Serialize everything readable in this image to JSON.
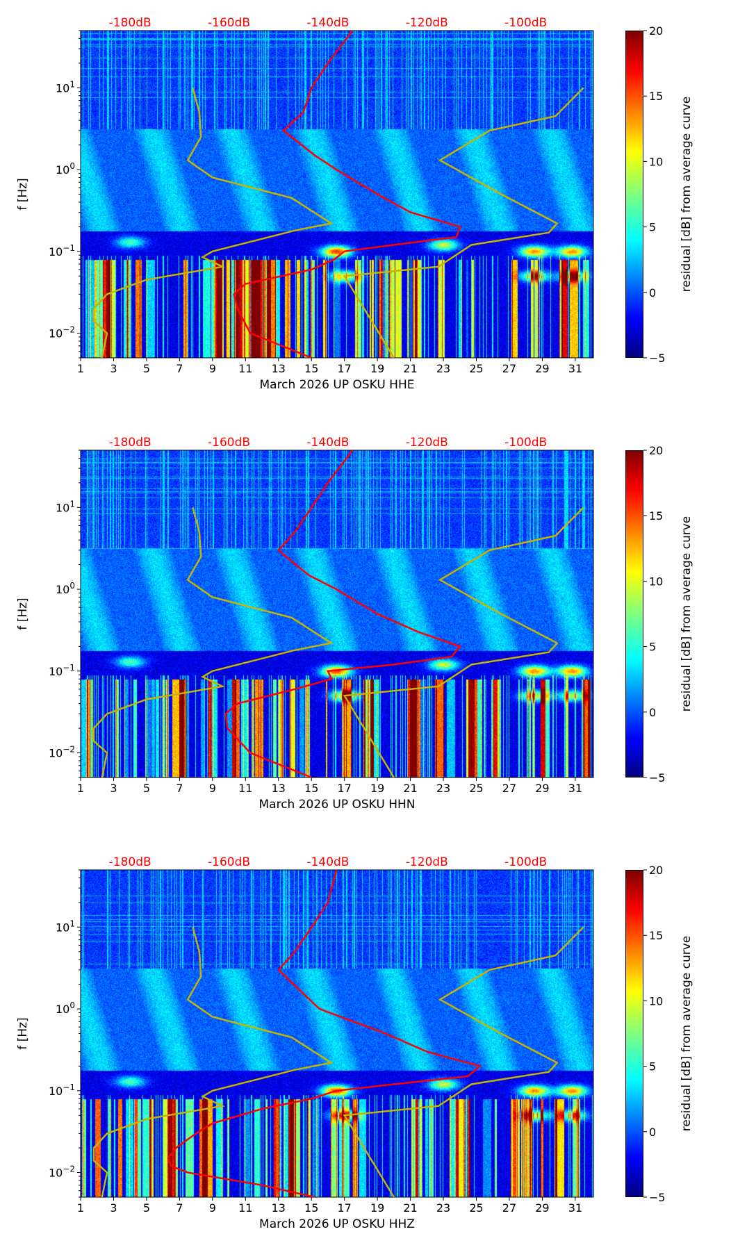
{
  "chart_data": [
    {
      "type": "heatmap",
      "xlabel": "March 2026 UP OSKU  HHE",
      "ylabel": "f [Hz]",
      "colorbar_label": "residual [dB] from average curve",
      "red_curve": {
        "freq": [
          50,
          20,
          10,
          5,
          3,
          1.5,
          1,
          0.5,
          0.3,
          0.2,
          0.15,
          0.12,
          0.1,
          0.08,
          0.06,
          0.04,
          0.03,
          0.02,
          0.01,
          0.005
        ],
        "db": [
          -135,
          -140,
          -143.3,
          -145,
          -149,
          -142.7,
          -138.3,
          -130,
          -123.3,
          -113.3,
          -114,
          -126.7,
          -136.7,
          -138.7,
          -143.3,
          -156.7,
          -159,
          -158.3,
          -155.7,
          -143.3
        ]
      }
    },
    {
      "type": "heatmap",
      "xlabel": "March 2026 UP OSKU  HHN",
      "ylabel": "f [Hz]",
      "colorbar_label": "residual [dB] from average curve",
      "red_curve": {
        "freq": [
          50,
          20,
          10,
          5,
          3,
          1.5,
          1,
          0.5,
          0.3,
          0.2,
          0.15,
          0.12,
          0.1,
          0.08,
          0.06,
          0.04,
          0.03,
          0.02,
          0.01,
          0.005
        ],
        "db": [
          -135,
          -140,
          -143.3,
          -146.7,
          -150,
          -144,
          -138.3,
          -130,
          -121.7,
          -113.3,
          -115,
          -126.7,
          -140,
          -139.3,
          -146.7,
          -158.3,
          -160.7,
          -160.3,
          -155.7,
          -143.3
        ]
      }
    },
    {
      "type": "heatmap",
      "xlabel": "March 2026 UP OSKU  HHZ",
      "ylabel": "f [Hz]",
      "colorbar_label": "residual [dB] from average curve",
      "red_curve": {
        "freq": [
          50,
          20,
          10,
          5,
          3,
          1,
          0.5,
          0.3,
          0.2,
          0.15,
          0.12,
          0.1,
          0.08,
          0.06,
          0.04,
          0.03,
          0.02,
          0.015,
          0.012,
          0.01,
          0.007,
          0.005
        ],
        "db": [
          -138.3,
          -140,
          -143.3,
          -146.7,
          -150,
          -141.7,
          -128.3,
          -120,
          -109.3,
          -111.7,
          -126.7,
          -138.3,
          -143.3,
          -153.3,
          -163.3,
          -166.7,
          -170.7,
          -172.3,
          -171.7,
          -168.3,
          -153.3,
          -142.7
        ]
      }
    }
  ],
  "shared": {
    "x_ticks": [
      "1",
      "3",
      "5",
      "7",
      "9",
      "11",
      "13",
      "15",
      "17",
      "19",
      "21",
      "23",
      "25",
      "27",
      "29",
      "31"
    ],
    "x_tick_values": [
      1,
      3,
      5,
      7,
      9,
      11,
      13,
      15,
      17,
      19,
      21,
      23,
      25,
      27,
      29,
      31
    ],
    "xlim": [
      1,
      32.1
    ],
    "ylim_hz": [
      0.005,
      50
    ],
    "y_ticks": [
      {
        "label": "10",
        "exp": "1",
        "value": 10
      },
      {
        "label": "10",
        "exp": "0",
        "value": 1
      },
      {
        "label": "10",
        "exp": "−1",
        "value": 0.1
      },
      {
        "label": "10",
        "exp": "−2",
        "value": 0.01
      }
    ],
    "top_db_ticks": [
      {
        "label": "-180dB",
        "day": 4
      },
      {
        "label": "-160dB",
        "day": 10
      },
      {
        "label": "-140dB",
        "day": 16
      },
      {
        "label": "-120dB",
        "day": 22
      },
      {
        "label": "-100dB",
        "day": 28
      }
    ],
    "colorbar_range": [
      -5,
      20
    ],
    "colorbar_ticks": [
      "20",
      "15",
      "10",
      "5",
      "0",
      "−5"
    ],
    "colorbar_tick_values": [
      20,
      15,
      10,
      5,
      0,
      -5
    ],
    "yellow_curve_a": {
      "freq": [
        10,
        5,
        2.5,
        1.3,
        0.8,
        0.45,
        0.22,
        0.18,
        0.1,
        0.085,
        0.065,
        0.045,
        0.03,
        0.02,
        0.014,
        0.01,
        0.005
      ],
      "day": [
        7.8,
        8.2,
        8.3,
        7.5,
        9,
        13.8,
        16.2,
        14,
        9,
        8.4,
        9.6,
        5,
        2.6,
        1.8,
        1.8,
        2.6,
        2.3
      ]
    },
    "yellow_curve_b": {
      "freq": [
        10,
        4.5,
        3,
        1.3,
        0.5,
        0.22,
        0.17,
        0.12,
        0.065,
        0.05,
        0.005
      ],
      "day": [
        31.5,
        29.8,
        25.8,
        22.8,
        26.5,
        29.9,
        29.4,
        24.7,
        22.7,
        17,
        20
      ]
    },
    "colors": {
      "red_curve": "#ff0000",
      "yellow_curve": "#c8b400",
      "top_labels": "#ff0000"
    }
  }
}
